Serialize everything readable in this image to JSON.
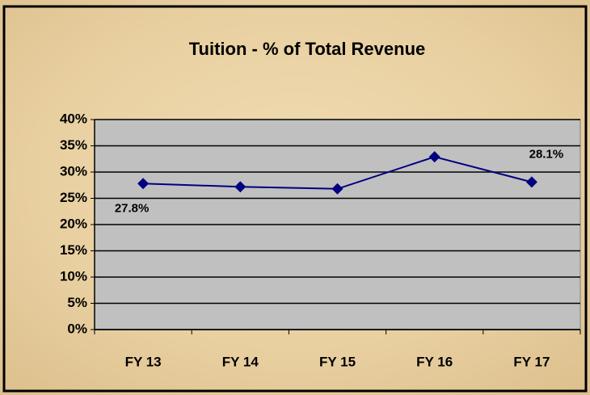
{
  "chart_data": {
    "type": "line",
    "title": "Tuition - % of Total Revenue",
    "categories": [
      "FY 13",
      "FY 14",
      "FY 15",
      "FY 16",
      "FY 17"
    ],
    "series": [
      {
        "name": "Tuition",
        "color": "#000080",
        "values": [
          27.8,
          27.2,
          26.8,
          32.9,
          28.1
        ]
      }
    ],
    "value_labels": [
      "27.8%",
      null,
      null,
      null,
      "28.1%"
    ],
    "ylim": [
      0,
      40
    ],
    "yticks": [
      {
        "value": 0,
        "label": "0%"
      },
      {
        "value": 5,
        "label": "5%"
      },
      {
        "value": 10,
        "label": "10%"
      },
      {
        "value": 15,
        "label": "15%"
      },
      {
        "value": 20,
        "label": "20%"
      },
      {
        "value": 25,
        "label": "25%"
      },
      {
        "value": 30,
        "label": "30%"
      },
      {
        "value": 35,
        "label": "35%"
      },
      {
        "value": 40,
        "label": "40%"
      }
    ],
    "grid": true
  }
}
